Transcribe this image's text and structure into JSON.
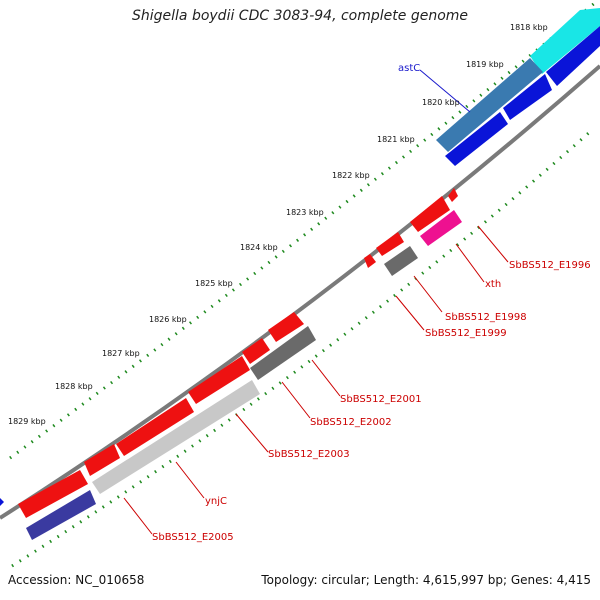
{
  "title": "Shigella boydii CDC 3083-94, complete genome",
  "footer": {
    "accession": "Accession: NC_010658",
    "summary": "Topology: circular; Length: 4,615,997 bp; Genes: 4,415"
  },
  "ticks": [
    "1818 kbp",
    "1819 kbp",
    "1820 kbp",
    "1821 kbp",
    "1822 kbp",
    "1823 kbp",
    "1824 kbp",
    "1825 kbp",
    "1826 kbp",
    "1827 kbp",
    "1828 kbp",
    "1829 kbp"
  ],
  "gene_labels": [
    {
      "text": "astC",
      "color": "#1a1acc"
    },
    {
      "text": "SbBS512_E1996",
      "color": "#cc0000"
    },
    {
      "text": "xth",
      "color": "#cc0000"
    },
    {
      "text": "SbBS512_E1998",
      "color": "#cc0000"
    },
    {
      "text": "SbBS512_E1999",
      "color": "#cc0000"
    },
    {
      "text": "SbBS512_E2001",
      "color": "#cc0000"
    },
    {
      "text": "SbBS512_E2002",
      "color": "#cc0000"
    },
    {
      "text": "SbBS512_E2003",
      "color": "#cc0000"
    },
    {
      "text": "ynjC",
      "color": "#cc0000"
    },
    {
      "text": "SbBS512_E2005",
      "color": "#cc0000"
    }
  ],
  "colors": {
    "backbone": "#8c8c8c",
    "tick_dots": "#1f8a1f",
    "cds": "#ee1111",
    "gene_blue": "#0a14d8",
    "gene_cyan": "#19e6e6",
    "gene_steel": "#3a7ab0",
    "gene_dark_gray": "#6a6a6a",
    "gene_light_gray": "#c8c8c8",
    "gene_pink": "#ee1190",
    "gene_navy": "#3a3aa0"
  }
}
